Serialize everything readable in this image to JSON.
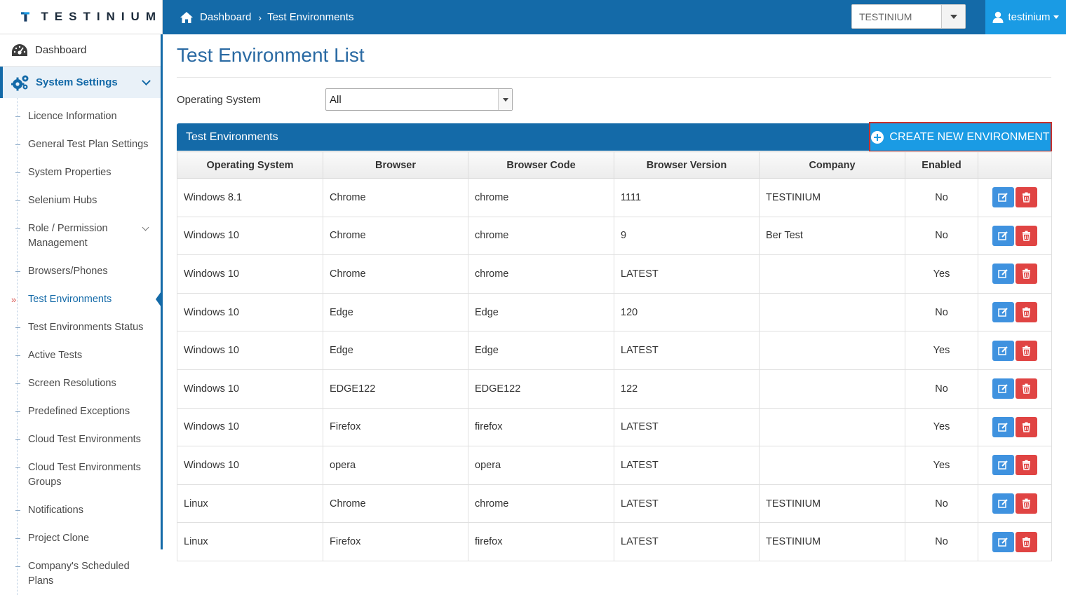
{
  "app": {
    "logo_text": "TESTINIUM"
  },
  "header": {
    "breadcrumb": [
      "Dashboard",
      "Test Environments"
    ],
    "company_select": "TESTINIUM",
    "user": "testinium"
  },
  "sidebar": {
    "dashboard": "Dashboard",
    "system_settings": "System Settings",
    "items": [
      {
        "label": "Licence Information"
      },
      {
        "label": "General Test Plan Settings"
      },
      {
        "label": "System Properties"
      },
      {
        "label": "Selenium Hubs"
      },
      {
        "label": "Role / Permission Management"
      },
      {
        "label": "Browsers/Phones"
      },
      {
        "label": "Test Environments"
      },
      {
        "label": "Test Environments Status"
      },
      {
        "label": "Active Tests"
      },
      {
        "label": "Screen Resolutions"
      },
      {
        "label": "Predefined Exceptions"
      },
      {
        "label": "Cloud Test Environments"
      },
      {
        "label": "Cloud Test Environments Groups"
      },
      {
        "label": "Notifications"
      },
      {
        "label": "Project Clone"
      },
      {
        "label": "Company's Scheduled Plans"
      }
    ]
  },
  "main": {
    "title": "Test Environment List",
    "filter_label": "Operating System",
    "filter_value": "All",
    "panel_title": "Test Environments",
    "create_button": "CREATE NEW ENVIRONMENT",
    "columns": [
      "Operating System",
      "Browser",
      "Browser Code",
      "Browser Version",
      "Company",
      "Enabled"
    ],
    "rows": [
      [
        "Windows 8.1",
        "Chrome",
        "chrome",
        "1111",
        "TESTINIUM",
        "No"
      ],
      [
        "Windows 10",
        "Chrome",
        "chrome",
        "9",
        "Ber Test",
        "No"
      ],
      [
        "Windows 10",
        "Chrome",
        "chrome",
        "LATEST",
        "",
        "Yes"
      ],
      [
        "Windows 10",
        "Edge",
        "Edge",
        "120",
        "",
        "No"
      ],
      [
        "Windows 10",
        "Edge",
        "Edge",
        "LATEST",
        "",
        "Yes"
      ],
      [
        "Windows 10",
        "EDGE122",
        "EDGE122",
        "122",
        "",
        "No"
      ],
      [
        "Windows 10",
        "Firefox",
        "firefox",
        "LATEST",
        "",
        "Yes"
      ],
      [
        "Windows 10",
        "opera",
        "opera",
        "LATEST",
        "",
        "Yes"
      ],
      [
        "Linux",
        "Chrome",
        "chrome",
        "LATEST",
        "TESTINIUM",
        "No"
      ],
      [
        "Linux",
        "Firefox",
        "firefox",
        "LATEST",
        "TESTINIUM",
        "No"
      ]
    ]
  },
  "colors": {
    "primary": "#146aa8",
    "accent": "#1a9be4",
    "edit": "#3f92df",
    "delete": "#e04443"
  },
  "icons": [
    "home-icon",
    "user-icon",
    "gauge-icon",
    "cogs-icon",
    "plus-circle-icon",
    "edit-icon",
    "trash-icon"
  ]
}
